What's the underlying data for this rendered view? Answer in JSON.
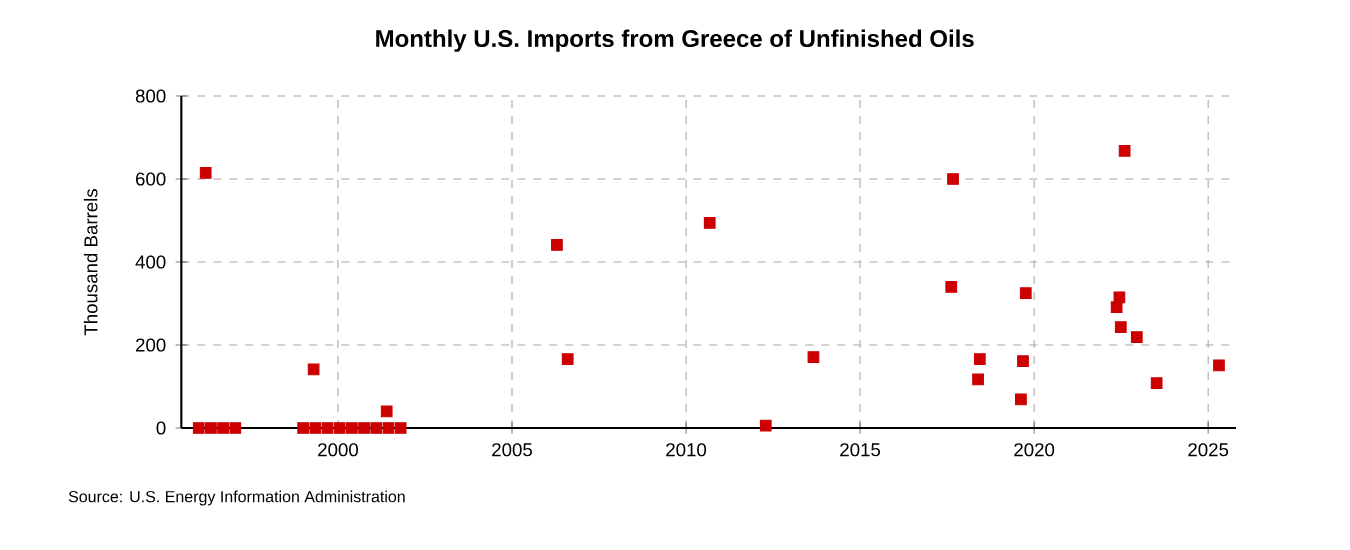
{
  "chart_data": {
    "type": "scatter",
    "title": "Monthly U.S. Imports from Greece of Unfinished Oils",
    "ylabel": "Thousand Barrels",
    "annotations": [
      "Source: U.S. Energy Information Administration"
    ],
    "x": [
      1996.0,
      1996.2,
      1996.35,
      1996.7,
      1997.05,
      1999.0,
      1999.3,
      1999.35,
      1999.7,
      2000.05,
      2000.4,
      2000.75,
      2001.1,
      2001.4,
      2001.45,
      2001.8,
      2006.29,
      2006.6,
      2010.68,
      2012.29,
      2013.66,
      2017.62,
      2017.67,
      2018.39,
      2018.44,
      2019.62,
      2019.68,
      2019.76,
      2022.37,
      2022.45,
      2022.49,
      2022.6,
      2022.95,
      2023.52,
      2025.31
    ],
    "values": [
      0,
      615,
      0,
      0,
      0,
      0,
      141,
      0,
      0,
      0,
      0,
      0,
      0,
      40,
      0,
      0,
      441,
      166,
      494,
      6,
      171,
      340,
      600,
      117,
      166,
      69,
      161,
      325,
      291,
      315,
      243,
      668,
      219,
      108,
      151
    ],
    "color": "#cc0000",
    "marker": "square",
    "xlim": [
      1995.5,
      2025.8
    ],
    "xticks": [
      2000,
      2005,
      2010,
      2015,
      2020,
      2025
    ],
    "ylim": [
      0,
      800
    ],
    "yticks": [
      0,
      200,
      400,
      600,
      800
    ],
    "grid": true
  }
}
